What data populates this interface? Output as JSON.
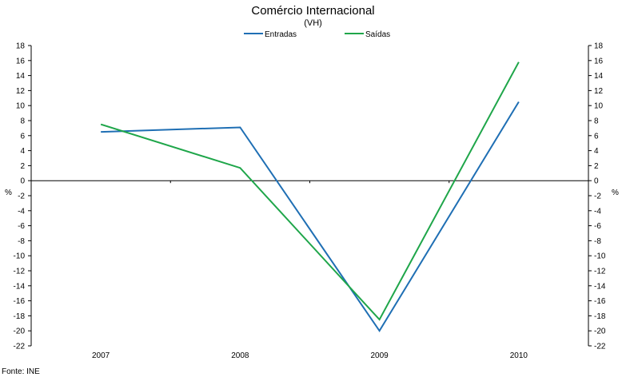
{
  "chart_data": {
    "type": "line",
    "title": "Comércio Internacional",
    "subtitle": "(VH)",
    "ylabel_left": "%",
    "ylabel_right": "%",
    "categories": [
      "2007",
      "2008",
      "2009",
      "2010"
    ],
    "ylim": [
      -22,
      18
    ],
    "yticks": [
      18,
      16,
      14,
      12,
      10,
      8,
      6,
      4,
      2,
      0,
      -2,
      -4,
      -6,
      -8,
      -10,
      -12,
      -14,
      -16,
      -18,
      -20,
      -22
    ],
    "grid": false,
    "legend_position": "top-center",
    "series": [
      {
        "name": "Entradas",
        "color": "#1f6fb4",
        "values": [
          6.5,
          7.1,
          -20.0,
          10.5
        ]
      },
      {
        "name": "Saídas",
        "color": "#1fa64a",
        "values": [
          7.5,
          1.7,
          -18.5,
          15.8
        ]
      }
    ],
    "source": "Fonte: INE"
  }
}
